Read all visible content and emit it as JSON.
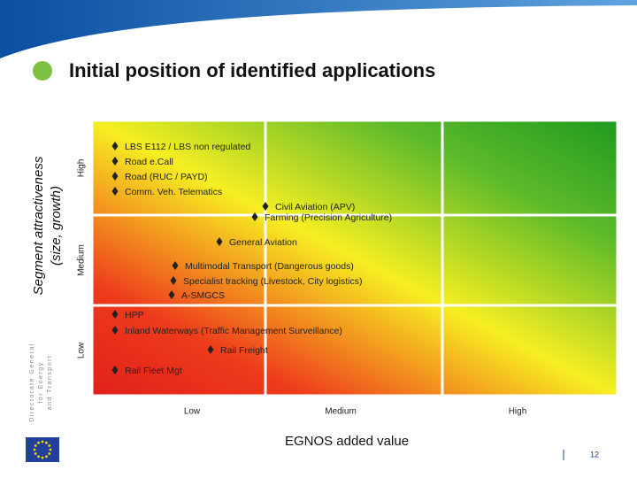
{
  "title": "Initial position of identified applications",
  "y_axis": {
    "title_lines": [
      "Segment attractiveness",
      "(size, growth)"
    ],
    "labels": [
      "High",
      "Medium",
      "Low"
    ]
  },
  "x_axis": {
    "title": "EGNOS added value",
    "labels": [
      "Low",
      "Medium",
      "High"
    ]
  },
  "applications": [
    "LBS E112 / LBS non regulated",
    "Road e.Call",
    "Road (RUC / PAYD)",
    "Comm. Veh. Telematics",
    "Civil Aviation (APV)",
    "Farming (Precision Agriculture)",
    "General Aviation",
    "Multimodal Transport (Dangerous goods)",
    "Specialist tracking (Livestock, City logistics)",
    "A-SMGCS",
    "HPP",
    "Inland Waterways (Traffic Management Surveillance)",
    "Rail Freight",
    "Rail Fleet Mgt"
  ],
  "logo_text": [
    "Directorate General",
    "for Energy",
    "and Transport"
  ],
  "page_number": "12"
}
